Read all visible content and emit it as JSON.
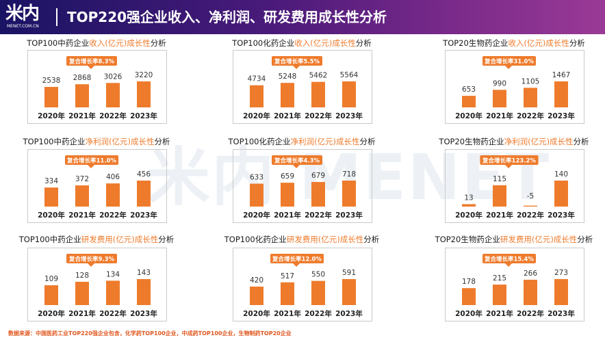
{
  "header": {
    "logo_mark": "米内",
    "logo_sub": "MENET.COM.CN",
    "title": "TOP220强企业收入、净利润、研发费用成长性分析"
  },
  "watermark": "米内 MENET",
  "footer": "数据来源：中国医药工业TOP220强企业包含，化学药TOP100企业，中成药TOP100企业，生物制药TOP20企业",
  "colors": {
    "bar": "#ee7b2c",
    "badge": "#ee7b2c",
    "highlight": "#ee7b2c"
  },
  "chart_data": [
    {
      "type": "bar",
      "title_prefix": "TOP100中药企业",
      "title_highlight": "收入(亿元)成长性",
      "title_suffix": "分析",
      "categories": [
        "2020年",
        "2021年",
        "2022年",
        "2023年"
      ],
      "values": [
        2538,
        2868,
        3026,
        3220
      ],
      "value_labels": [
        "2538",
        "2868",
        "3026",
        "3220"
      ],
      "badge": "复合增长率8.3%"
    },
    {
      "type": "bar",
      "title_prefix": "TOP100化药企业",
      "title_highlight": "收入(亿元)成长性",
      "title_suffix": "分析",
      "categories": [
        "2020年",
        "2021年",
        "2022年",
        "2023年"
      ],
      "values": [
        4734,
        5248,
        5462,
        5564
      ],
      "value_labels": [
        "4734",
        "5248",
        "5462",
        "5564"
      ],
      "badge": "复合增长率5.5%"
    },
    {
      "type": "bar",
      "title_prefix": "TOP20生物药企业",
      "title_highlight": "收入(亿元)成长性",
      "title_suffix": "分析",
      "categories": [
        "2020年",
        "2021年",
        "2022年",
        "2023年"
      ],
      "values": [
        653,
        990,
        1105,
        1467
      ],
      "value_labels": [
        "653",
        "990",
        "1105",
        "1467"
      ],
      "badge": "复合增长率31.0%"
    },
    {
      "type": "bar",
      "title_prefix": "TOP100中药企业",
      "title_highlight": "净利润(亿元)成长性",
      "title_suffix": "分析",
      "categories": [
        "2020年",
        "2021年",
        "2022年",
        "2023年"
      ],
      "values": [
        334,
        372,
        406,
        456
      ],
      "value_labels": [
        "334",
        "372",
        "406",
        "456"
      ],
      "badge": "复合增长率11.0%"
    },
    {
      "type": "bar",
      "title_prefix": "TOP100化药企业",
      "title_highlight": "净利润(亿元)成长性",
      "title_suffix": "分析",
      "categories": [
        "2020年",
        "2021年",
        "2022年",
        "2023年"
      ],
      "values": [
        633,
        659,
        679,
        718
      ],
      "value_labels": [
        "633",
        "659",
        "679",
        "718"
      ],
      "badge": "复合增长率4.3%"
    },
    {
      "type": "bar",
      "title_prefix": "TOP20生物药企业",
      "title_highlight": "净利润(亿元)成长性",
      "title_suffix": "分析",
      "categories": [
        "2020年",
        "2021年",
        "2022年",
        "2023年"
      ],
      "values": [
        13,
        115,
        -5,
        140
      ],
      "value_labels": [
        "13",
        "115",
        "-5",
        "140"
      ],
      "badge": "复合增长率123.2%"
    },
    {
      "type": "bar",
      "title_prefix": "TOP100中药企业",
      "title_highlight": "研发费用(亿元)成长性",
      "title_suffix": "分析",
      "categories": [
        "2020年",
        "2021年",
        "2022年",
        "2023年"
      ],
      "values": [
        109,
        128,
        134,
        143
      ],
      "value_labels": [
        "109",
        "128",
        "134",
        "143"
      ],
      "badge": "复合增长率9.3%"
    },
    {
      "type": "bar",
      "title_prefix": "TOP100化药企业",
      "title_highlight": "研发费用(亿元)成长性",
      "title_suffix": "分析",
      "categories": [
        "2020年",
        "2021年",
        "2022年",
        "2023年"
      ],
      "values": [
        420,
        517,
        550,
        591
      ],
      "value_labels": [
        "420",
        "517",
        "550",
        "591"
      ],
      "badge": "复合增长率12.0%"
    },
    {
      "type": "bar",
      "title_prefix": "TOP20生物药企业",
      "title_highlight": "研发费用(亿元)成长性",
      "title_suffix": "分析",
      "categories": [
        "2020年",
        "2021年",
        "2022年",
        "2023年"
      ],
      "values": [
        178,
        215,
        266,
        273
      ],
      "value_labels": [
        "178",
        "215",
        "266",
        "273"
      ],
      "badge": "复合增长率15.4%"
    }
  ]
}
